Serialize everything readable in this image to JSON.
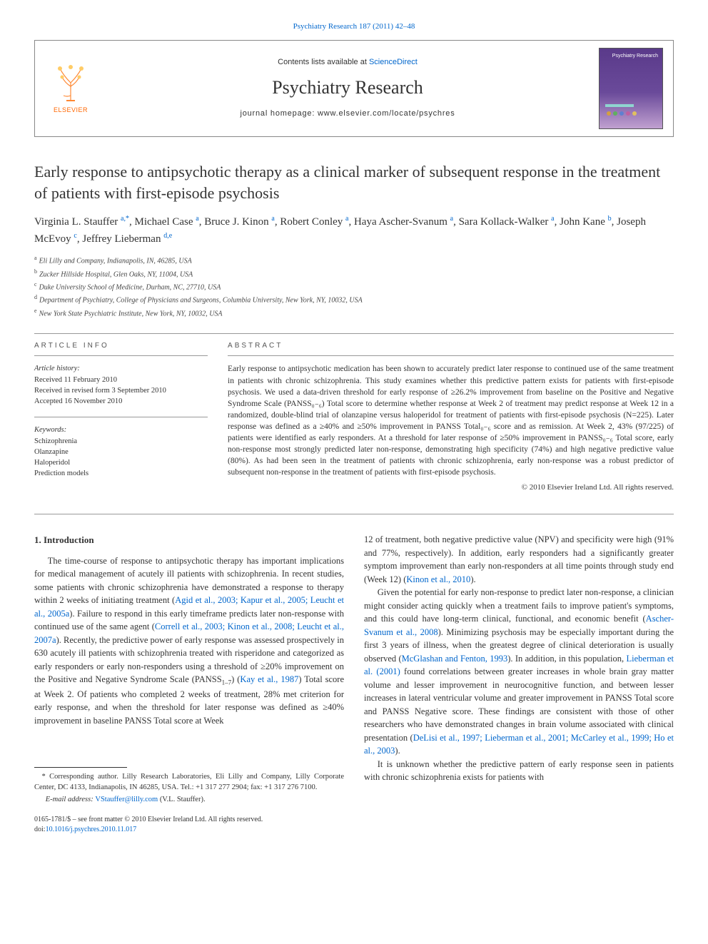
{
  "journal_link": {
    "prefix": "",
    "text": "Psychiatry Research 187 (2011) 42–48"
  },
  "header": {
    "publisher_logo_text": "ELSEVIER",
    "contents_prefix": "Contents lists available at ",
    "contents_link": "ScienceDirect",
    "journal_name": "Psychiatry Research",
    "homepage_prefix": "journal homepage: ",
    "homepage_url": "www.elsevier.com/locate/psychres",
    "cover_label": "Psychiatry Research",
    "cover_dot_colors": [
      "#d4a040",
      "#5fb05f",
      "#5f80d0",
      "#c05fa0",
      "#e0c060"
    ],
    "cover_bar_color": "#8fd4d0"
  },
  "title": "Early response to antipsychotic therapy as a clinical marker of subsequent response in the treatment of patients with first-episode psychosis",
  "authors_html": "Virginia L. Stauffer <span class='sup'>a,</span><span class='sup-star'>*</span>, Michael Case <span class='sup'>a</span>, Bruce J. Kinon <span class='sup'>a</span>, Robert Conley <span class='sup'>a</span>, Haya Ascher-Svanum <span class='sup'>a</span>, Sara Kollack-Walker <span class='sup'>a</span>, John Kane <span class='sup'>b</span>, Joseph McEvoy <span class='sup'>c</span>, Jeffrey Lieberman <span class='sup'>d,e</span>",
  "affiliations": [
    {
      "sup": "a",
      "text": "Eli Lilly and Company, Indianapolis, IN, 46285, USA"
    },
    {
      "sup": "b",
      "text": "Zucker Hillside Hospital, Glen Oaks, NY, 11004, USA"
    },
    {
      "sup": "c",
      "text": "Duke University School of Medicine, Durham, NC, 27710, USA"
    },
    {
      "sup": "d",
      "text": "Department of Psychiatry, College of Physicians and Surgeons, Columbia University, New York, NY, 10032, USA"
    },
    {
      "sup": "e",
      "text": "New York State Psychiatric Institute, New York, NY, 10032, USA"
    }
  ],
  "article_info": {
    "heading": "ARTICLE INFO",
    "history_label": "Article history:",
    "history": [
      "Received 11 February 2010",
      "Received in revised form 3 September 2010",
      "Accepted 16 November 2010"
    ],
    "keywords_label": "Keywords:",
    "keywords": [
      "Schizophrenia",
      "Olanzapine",
      "Haloperidol",
      "Prediction models"
    ]
  },
  "abstract": {
    "heading": "ABSTRACT",
    "text": "Early response to antipsychotic medication has been shown to accurately predict later response to continued use of the same treatment in patients with chronic schizophrenia. This study examines whether this predictive pattern exists for patients with first-episode psychosis. We used a data-driven threshold for early response of ≥26.2% improvement from baseline on the Positive and Negative Syndrome Scale (PANSS₀₋₆) Total score to determine whether response at Week 2 of treatment may predict response at Week 12 in a randomized, double-blind trial of olanzapine versus haloperidol for treatment of patients with first-episode psychosis (N=225). Later response was defined as a ≥40% and ≥50% improvement in PANSS Total₀₋₆ score and as remission. At Week 2, 43% (97/225) of patients were identified as early responders. At a threshold for later response of ≥50% improvement in PANSS₀₋₆ Total score, early non-response most strongly predicted later non-response, demonstrating high specificity (74%) and high negative predictive value (80%). As had been seen in the treatment of patients with chronic schizophrenia, early non-response was a robust predictor of subsequent non-response in the treatment of patients with first-episode psychosis.",
    "copyright": "© 2010 Elsevier Ireland Ltd. All rights reserved."
  },
  "section1": {
    "heading": "1. Introduction",
    "p1_html": "The time-course of response to antipsychotic therapy has important implications for medical management of acutely ill patients with schizophrenia. In recent studies, some patients with chronic schizophrenia have demonstrated a response to therapy within 2 weeks of initiating treatment (<a>Agid et al., 2003; Kapur et al., 2005; Leucht et al., 2005a</a>). Failure to respond in this early timeframe predicts later non-response with continued use of the same agent (<a>Correll et al., 2003; Kinon et al., 2008; Leucht et al., 2007a</a>). Recently, the predictive power of early response was assessed prospectively in 630 acutely ill patients with schizophrenia treated with risperidone and categorized as early responders or early non-responders using a threshold of ≥20% improvement on the Positive and Negative Syndrome Scale (PANSS<span class='sub'>1–7</span>) (<a>Kay et al., 1987</a>) Total score at Week 2. Of patients who completed 2 weeks of treatment, 28% met criterion for early response, and when the threshold for later response was defined as ≥40% improvement in baseline PANSS Total score at Week",
    "p2_html": "12 of treatment, both negative predictive value (NPV) and specificity were high (91% and 77%, respectively). In addition, early responders had a significantly greater symptom improvement than early non-responders at all time points through study end (Week 12) (<a>Kinon et al., 2010</a>).",
    "p3_html": "Given the potential for early non-response to predict later non-response, a clinician might consider acting quickly when a treatment fails to improve patient's symptoms, and this could have long-term clinical, functional, and economic benefit (<a>Ascher-Svanum et al., 2008</a>). Minimizing psychosis may be especially important during the first 3 years of illness, when the greatest degree of clinical deterioration is usually observed (<a>McGlashan and Fenton, 1993</a>). In addition, in this population, <a>Lieberman et al. (2001)</a> found correlations between greater increases in whole brain gray matter volume and lesser improvement in neurocognitive function, and between lesser increases in lateral ventricular volume and greater improvement in PANSS Total score and PANSS Negative score. These findings are consistent with those of other researchers who have demonstrated changes in brain volume associated with clinical presentation (<a>DeLisi et al., 1997; Lieberman et al., 2001; McCarley et al., 1999; Ho et al., 2003</a>).",
    "p4_html": "It is unknown whether the predictive pattern of early response seen in patients with chronic schizophrenia exists for patients with"
  },
  "footnotes": {
    "corr_html": "* Corresponding author. Lilly Research Laboratories, Eli Lilly and Company, Lilly Corporate Center, DC 4133, Indianapolis, IN 46285, USA. Tel.: +1 317 277 2904; fax: +1 317 276 7100.",
    "email_label": "E-mail address: ",
    "email": "VStauffer@lilly.com",
    "email_suffix": " (V.L. Stauffer)."
  },
  "footer": {
    "line1": "0165-1781/$ – see front matter © 2010 Elsevier Ireland Ltd. All rights reserved.",
    "doi_prefix": "doi:",
    "doi": "10.1016/j.psychres.2010.11.017"
  },
  "colors": {
    "link": "#0066cc",
    "text": "#333333",
    "elsevier_orange": "#ff6600",
    "hr": "#999999"
  }
}
